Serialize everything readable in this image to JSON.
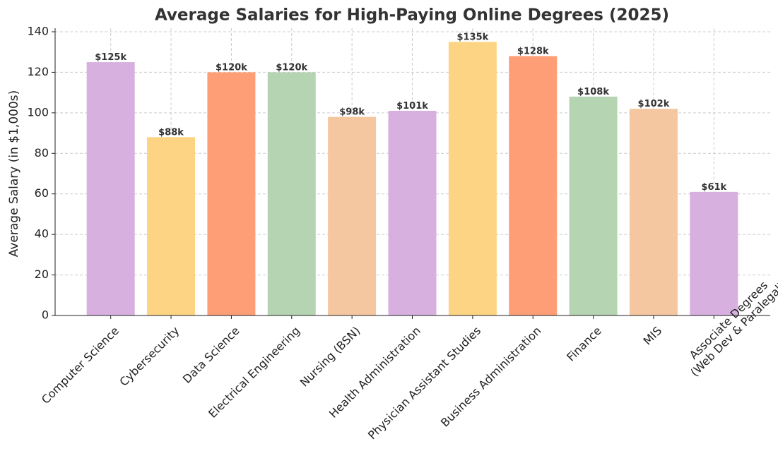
{
  "chart_data": {
    "type": "bar",
    "title": "Average Salaries for High-Paying Online Degrees (2025)",
    "y_label": "Average Salary (in $1,000s)",
    "categories": [
      "Computer Science",
      "Cybersecurity",
      "Data Science",
      "Electrical Engineering",
      "Nursing (BSN)",
      "Health Administration",
      "Physician Assistant Studies",
      "Business Administration",
      "Finance",
      "MIS",
      "Associate Degrees\n(Web Dev & Paralegal)"
    ],
    "values": [
      125,
      88,
      120,
      120,
      98,
      101,
      135,
      128,
      108,
      102,
      61
    ],
    "value_labels": [
      "$125k",
      "$88k",
      "$120k",
      "$120k",
      "$98k",
      "$101k",
      "$135k",
      "$128k",
      "$108k",
      "$102k",
      "$61k"
    ],
    "colors": [
      "#d8b0e0",
      "#fdd484",
      "#fd9e76",
      "#b4d4b2",
      "#f4c7a0",
      "#d8b0e0",
      "#fdd484",
      "#fd9e76",
      "#b4d4b2",
      "#f4c7a0",
      "#d8b0e0"
    ],
    "ylim": [
      0,
      140
    ],
    "yticks": [
      0,
      20,
      40,
      60,
      80,
      100,
      120,
      140
    ],
    "grid": true
  }
}
